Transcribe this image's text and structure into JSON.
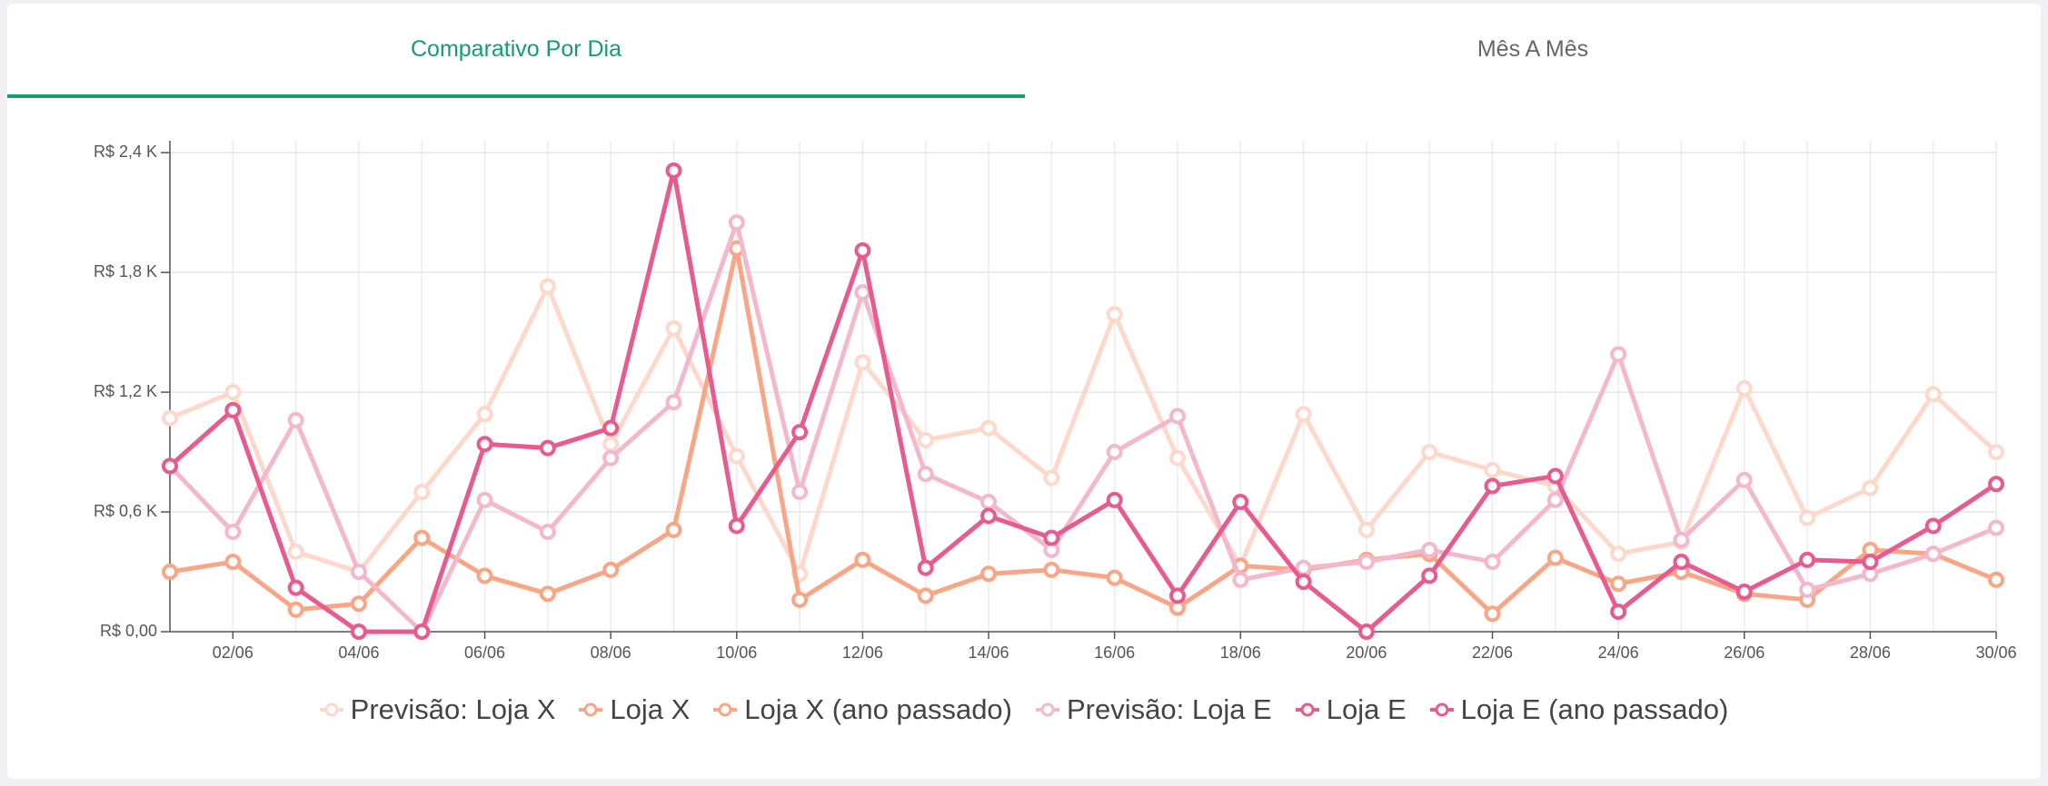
{
  "tabs": [
    "Comparativo Por Dia",
    "Mês A Mês"
  ],
  "chart_data": {
    "type": "line",
    "categories": [
      null,
      "02/06",
      null,
      "04/06",
      null,
      "06/06",
      null,
      "08/06",
      null,
      "10/06",
      null,
      "12/06",
      null,
      "14/06",
      null,
      "16/06",
      null,
      "18/06",
      null,
      "20/06",
      null,
      "22/06",
      null,
      "24/06",
      null,
      "26/06",
      null,
      "28/06",
      null,
      "30/06"
    ],
    "ylim": [
      0,
      2460
    ],
    "yticks": [
      {
        "value": 0,
        "label": "R$ 0,00"
      },
      {
        "value": 600,
        "label": "R$ 0,6 K"
      },
      {
        "value": 1200,
        "label": "R$ 1,2 K"
      },
      {
        "value": 1800,
        "label": "R$ 1,8 K"
      },
      {
        "value": 2400,
        "label": "R$ 2,4 K"
      }
    ],
    "grid": true,
    "legend": "bottom",
    "series": [
      {
        "name": "Previsão: Loja X",
        "color": "#fdd8cb",
        "values": [
          1070,
          1200,
          400,
          300,
          700,
          1090,
          1730,
          940,
          1520,
          880,
          290,
          1350,
          960,
          1020,
          770,
          1590,
          870,
          330,
          1090,
          510,
          900,
          810,
          730,
          390,
          450,
          1220,
          570,
          720,
          1190,
          900
        ]
      },
      {
        "name": "Loja X",
        "color": "#f8a686",
        "values": [
          300,
          350,
          110,
          140,
          470,
          280,
          190,
          310,
          510,
          1920,
          160,
          360,
          180,
          290,
          310,
          270,
          120,
          330,
          310,
          360,
          390,
          90,
          370,
          240,
          300,
          190,
          160,
          410,
          390,
          260
        ]
      },
      {
        "name": "Loja X (ano passado)",
        "color": "#f8a686",
        "values": [
          null,
          null,
          null,
          null,
          null,
          null,
          null,
          null,
          null,
          null,
          null,
          null,
          null,
          null,
          null,
          null,
          null,
          null,
          null,
          null,
          null,
          null,
          null,
          null,
          null,
          null,
          null,
          null,
          null,
          null
        ]
      },
      {
        "name": "Previsão: Loja E",
        "color": "#f4b8cd",
        "values": [
          830,
          500,
          1060,
          300,
          0,
          660,
          500,
          870,
          1150,
          2050,
          700,
          1700,
          790,
          650,
          410,
          900,
          1080,
          260,
          320,
          350,
          410,
          350,
          660,
          1390,
          460,
          760,
          210,
          290,
          390,
          520
        ]
      },
      {
        "name": "Loja E",
        "color": "#e85b8f",
        "values": [
          830,
          1110,
          220,
          0,
          0,
          940,
          920,
          1020,
          2310,
          530,
          1000,
          1910,
          320,
          580,
          470,
          660,
          180,
          650,
          250,
          0,
          280,
          730,
          780,
          100,
          350,
          200,
          360,
          350,
          530,
          740
        ]
      },
      {
        "name": "Loja E (ano passado)",
        "color": "#e85b8f",
        "values": [
          null,
          null,
          null,
          null,
          null,
          null,
          null,
          null,
          null,
          null,
          null,
          null,
          null,
          null,
          null,
          null,
          null,
          null,
          null,
          null,
          null,
          null,
          null,
          null,
          null,
          null,
          null,
          null,
          null,
          null
        ]
      }
    ]
  }
}
